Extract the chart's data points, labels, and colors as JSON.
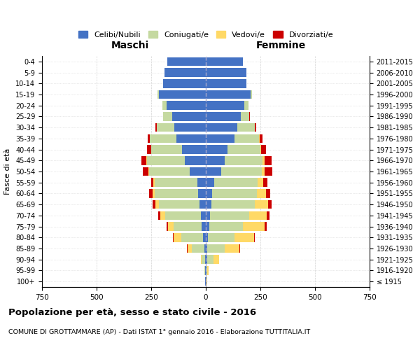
{
  "age_groups": [
    "100+",
    "95-99",
    "90-94",
    "85-89",
    "80-84",
    "75-79",
    "70-74",
    "65-69",
    "60-64",
    "55-59",
    "50-54",
    "45-49",
    "40-44",
    "35-39",
    "30-34",
    "25-29",
    "20-24",
    "15-19",
    "10-14",
    "5-9",
    "0-4"
  ],
  "birth_years": [
    "≤ 1915",
    "1916-1920",
    "1921-1925",
    "1926-1930",
    "1931-1935",
    "1936-1940",
    "1941-1945",
    "1946-1950",
    "1951-1955",
    "1956-1960",
    "1961-1965",
    "1966-1970",
    "1971-1975",
    "1976-1980",
    "1981-1985",
    "1986-1990",
    "1991-1995",
    "1996-2000",
    "2001-2005",
    "2006-2010",
    "2011-2015"
  ],
  "males": {
    "celibe": [
      2,
      2,
      4,
      8,
      12,
      18,
      22,
      30,
      35,
      40,
      75,
      95,
      110,
      135,
      145,
      155,
      180,
      215,
      195,
      190,
      175
    ],
    "coniugato": [
      1,
      3,
      15,
      55,
      100,
      130,
      165,
      185,
      200,
      195,
      185,
      175,
      140,
      120,
      80,
      40,
      20,
      5,
      0,
      0,
      0
    ],
    "vedovo": [
      0,
      1,
      5,
      20,
      35,
      25,
      20,
      15,
      10,
      5,
      3,
      2,
      1,
      0,
      0,
      0,
      0,
      0,
      0,
      0,
      0
    ],
    "divorziato": [
      0,
      0,
      0,
      2,
      5,
      8,
      12,
      12,
      15,
      10,
      25,
      22,
      18,
      10,
      5,
      0,
      0,
      0,
      0,
      0,
      0
    ]
  },
  "females": {
    "nubile": [
      2,
      2,
      5,
      8,
      10,
      15,
      20,
      25,
      30,
      38,
      70,
      85,
      100,
      130,
      145,
      160,
      175,
      205,
      185,
      185,
      170
    ],
    "coniugata": [
      2,
      5,
      30,
      80,
      120,
      155,
      180,
      200,
      205,
      200,
      185,
      175,
      150,
      115,
      80,
      40,
      20,
      5,
      0,
      0,
      0
    ],
    "vedova": [
      1,
      5,
      25,
      65,
      90,
      100,
      80,
      60,
      40,
      25,
      15,
      8,
      4,
      2,
      0,
      0,
      0,
      0,
      0,
      0,
      0
    ],
    "divorziata": [
      0,
      0,
      1,
      3,
      5,
      10,
      12,
      15,
      20,
      18,
      35,
      32,
      22,
      12,
      5,
      2,
      0,
      0,
      0,
      0,
      0
    ]
  },
  "colors": {
    "celibe": "#4472C4",
    "coniugato": "#c5d9a0",
    "vedovo": "#ffd966",
    "divorziato": "#cc0000"
  },
  "legend_labels": [
    "Celibi/Nubili",
    "Coniugati/e",
    "Vedovi/e",
    "Divorziati/e"
  ],
  "xlim": 750,
  "title": "Popolazione per età, sesso e stato civile - 2016",
  "subtitle": "COMUNE DI GROTTAMMARE (AP) - Dati ISTAT 1° gennaio 2016 - Elaborazione TUTTITALIA.IT",
  "ylabel": "Fasce di età",
  "xlabel_left": "Maschi",
  "xlabel_right": "Femmine"
}
